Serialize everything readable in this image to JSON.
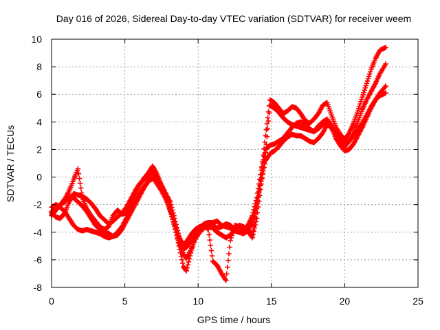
{
  "chart_data": {
    "type": "scatter",
    "title": "Day 016 of 2026, Sidereal Day-to-day VTEC variation (SDTVAR) for receiver weem",
    "xlabel": "GPS time / hours",
    "ylabel": "SDTVAR / TECUs",
    "xlim": [
      0,
      25
    ],
    "ylim": [
      -8,
      10
    ],
    "x_ticks": [
      "0",
      "5",
      "10",
      "15",
      "20",
      "25"
    ],
    "y_ticks": [
      "-8",
      "-6",
      "-4",
      "-2",
      "0",
      "2",
      "4",
      "6",
      "8",
      "10"
    ],
    "grid": true,
    "marker": "+",
    "colors": {
      "series": "#ff0000",
      "grid": "#a0a0a0",
      "axis": "#000000"
    },
    "series": [
      {
        "x": [
          0.0,
          0.3,
          0.6,
          0.9,
          1.2,
          1.5,
          1.8,
          2.1,
          2.4,
          2.7,
          3.0,
          3.3,
          3.6,
          3.9,
          4.2,
          4.5,
          4.8,
          5.1,
          5.4,
          5.7,
          6.0,
          6.3,
          6.6,
          6.9,
          7.2,
          7.5,
          7.8,
          8.1,
          8.4,
          8.7,
          9.0,
          9.2,
          9.5,
          9.8,
          10.1,
          10.4,
          10.7,
          11.0,
          11.3,
          11.6,
          11.9,
          12.2,
          12.5,
          12.8,
          13.1,
          13.4,
          13.7,
          14.0,
          14.3,
          14.6,
          14.9,
          15.2,
          15.5,
          15.8,
          16.1,
          16.4,
          16.7,
          17.0,
          17.3,
          17.6,
          17.9,
          18.2,
          18.5,
          18.8,
          19.1,
          19.4,
          19.7,
          20.0,
          20.3,
          20.6,
          20.9,
          21.2,
          21.5,
          21.8,
          22.1,
          22.4,
          22.8
        ],
        "values": [
          -2.6,
          -2.9,
          -3.0,
          -2.6,
          -1.8,
          -1.2,
          -1.3,
          -1.4,
          -1.6,
          -1.9,
          -2.3,
          -2.8,
          -3.1,
          -3.4,
          -3.2,
          -2.9,
          -2.6,
          -2.2,
          -1.6,
          -1.0,
          -0.5,
          -0.2,
          0.1,
          0.4,
          0.0,
          -0.6,
          -1.2,
          -1.8,
          -3.0,
          -4.3,
          -5.2,
          -5.1,
          -4.7,
          -4.2,
          -3.7,
          -3.4,
          -3.3,
          -3.3,
          -3.2,
          -3.5,
          -3.6,
          -3.7,
          -3.9,
          -4.0,
          -3.8,
          -3.5,
          -2.8,
          -1.5,
          0.5,
          2.0,
          2.3,
          2.4,
          2.6,
          2.8,
          3.2,
          3.6,
          3.9,
          4.0,
          3.8,
          3.5,
          3.3,
          3.5,
          3.8,
          4.1,
          3.6,
          3.0,
          2.5,
          2.2,
          2.6,
          3.0,
          3.4,
          3.9,
          4.5,
          5.1,
          5.6,
          5.9,
          6.1
        ]
      },
      {
        "x": [
          0.0,
          0.3,
          0.6,
          0.9,
          1.2,
          1.5,
          1.8,
          2.1,
          2.4,
          2.7,
          3.0,
          3.3,
          3.6,
          3.9,
          4.2,
          4.5,
          4.8,
          5.1,
          5.4,
          5.7,
          6.0,
          6.3,
          6.6,
          6.9,
          7.2,
          7.5,
          7.8,
          8.1,
          8.4,
          8.7,
          9.0,
          9.2,
          9.5,
          9.8,
          10.1,
          10.4,
          10.7,
          11.0,
          11.3,
          11.6,
          11.9,
          12.2,
          12.5,
          12.8,
          13.1,
          13.4,
          13.7,
          14.0,
          14.3,
          14.6,
          14.9,
          15.2,
          15.5,
          15.8,
          16.1,
          16.4,
          16.7,
          17.0,
          17.3,
          17.6,
          17.9,
          18.2,
          18.5,
          18.8,
          19.1,
          19.4,
          19.7,
          20.0,
          20.3,
          20.6,
          20.9,
          21.2,
          21.5,
          21.8,
          22.1,
          22.4,
          22.8
        ],
        "values": [
          -2.2,
          -2.0,
          -2.2,
          -2.5,
          -3.0,
          -3.5,
          -3.8,
          -3.9,
          -3.8,
          -3.9,
          -4.0,
          -4.1,
          -4.3,
          -4.4,
          -4.3,
          -4.0,
          -3.6,
          -3.0,
          -2.4,
          -1.8,
          -1.2,
          -0.7,
          -0.3,
          -0.1,
          -0.4,
          -0.9,
          -1.4,
          -2.2,
          -3.5,
          -5.0,
          -6.5,
          -6.8,
          -5.5,
          -4.3,
          -3.7,
          -3.4,
          -3.3,
          -3.5,
          -3.7,
          -3.6,
          -3.4,
          -3.5,
          -3.8,
          -4.0,
          -4.1,
          -3.9,
          -3.3,
          -2.0,
          -0.3,
          1.2,
          1.7,
          1.9,
          2.2,
          2.6,
          2.9,
          3.1,
          3.0,
          3.0,
          2.8,
          2.6,
          2.5,
          2.8,
          3.2,
          3.8,
          3.6,
          2.8,
          2.3,
          1.9,
          2.0,
          2.4,
          3.0,
          3.6,
          4.3,
          5.0,
          5.6,
          6.1,
          6.6
        ]
      },
      {
        "x": [
          0.0,
          0.3,
          0.6,
          0.9,
          1.2,
          1.5,
          1.8,
          2.1,
          2.4,
          2.7,
          3.0,
          3.3,
          3.6,
          3.9,
          4.2,
          4.5,
          4.8,
          5.1,
          5.4,
          5.7,
          6.0,
          6.3,
          6.6,
          6.9,
          7.2,
          7.5,
          7.8,
          8.1,
          8.4,
          8.7,
          9.0,
          9.2,
          9.5,
          9.8,
          10.1,
          10.4,
          10.7,
          11.0,
          11.3,
          11.6,
          11.9,
          12.2,
          12.5,
          12.8,
          13.1,
          13.4,
          13.7,
          14.0,
          14.3,
          14.6,
          14.9,
          15.2,
          15.5,
          15.8,
          16.1,
          16.4,
          16.7,
          17.0,
          17.3,
          17.6,
          17.9,
          18.2,
          18.5,
          18.8,
          19.1,
          19.4,
          19.7,
          20.0,
          20.3,
          20.6,
          20.9,
          21.2,
          21.5,
          21.8,
          22.1,
          22.4,
          22.8
        ],
        "values": [
          -2.5,
          -2.3,
          -2.0,
          -1.6,
          -1.0,
          -0.2,
          0.6,
          -1.5,
          -2.3,
          -2.8,
          -3.2,
          -3.6,
          -3.8,
          -3.6,
          -2.8,
          -2.4,
          -2.7,
          -2.6,
          -2.1,
          -1.4,
          -0.6,
          -0.1,
          0.3,
          0.8,
          0.2,
          -0.6,
          -1.5,
          -2.5,
          -3.6,
          -4.8,
          -5.6,
          -5.9,
          -5.3,
          -4.5,
          -4.0,
          -3.7,
          -3.5,
          -3.7,
          -4.0,
          -4.2,
          -4.4,
          -4.2,
          -3.8,
          -3.5,
          -3.6,
          -3.9,
          -4.4,
          -3.0,
          -0.5,
          1.8,
          5.2,
          5.0,
          4.7,
          4.3,
          4.0,
          3.8,
          3.7,
          3.6,
          3.5,
          3.4,
          3.3,
          3.7,
          4.0,
          4.2,
          3.7,
          3.2,
          2.8,
          2.4,
          2.6,
          3.2,
          4.0,
          4.9,
          5.6,
          6.2,
          6.8,
          7.5,
          8.2
        ]
      },
      {
        "x": [
          0.0,
          0.3,
          0.6,
          0.9,
          1.2,
          1.5,
          1.8,
          2.1,
          2.4,
          2.7,
          3.0,
          3.3,
          3.6,
          3.9,
          4.2,
          4.5,
          4.8,
          5.1,
          5.4,
          5.7,
          6.0,
          6.3,
          6.6,
          6.9,
          7.2,
          7.5,
          7.8,
          8.1,
          8.4,
          8.7,
          9.0,
          9.2,
          9.5,
          9.8,
          10.1,
          10.4,
          10.7,
          11.0,
          11.3,
          11.6,
          11.9,
          12.2,
          12.5,
          12.8,
          13.1,
          13.4,
          13.7,
          14.0,
          14.3,
          14.6,
          14.9,
          15.2,
          15.5,
          15.8,
          16.1,
          16.4,
          16.7,
          17.0,
          17.3,
          17.6,
          17.9,
          18.2,
          18.5,
          18.8,
          19.1,
          19.4,
          19.7,
          20.0,
          20.3,
          20.6,
          20.9,
          21.2,
          21.5,
          21.8,
          22.1,
          22.4,
          22.8
        ],
        "values": [
          -2.8,
          -2.4,
          -2.0,
          -1.8,
          -1.4,
          -1.5,
          -1.8,
          -2.1,
          -2.5,
          -3.0,
          -3.5,
          -3.8,
          -4.0,
          -4.1,
          -4.3,
          -4.2,
          -3.8,
          -3.2,
          -2.6,
          -2.0,
          -1.4,
          -0.8,
          -0.3,
          0.0,
          -0.5,
          -1.0,
          -1.6,
          -2.4,
          -3.4,
          -4.4,
          -4.9,
          -4.7,
          -4.2,
          -3.8,
          -3.6,
          -3.5,
          -3.8,
          -6.1,
          -6.4,
          -7.0,
          -7.5,
          -4.6,
          -3.5,
          -3.6,
          -3.7,
          -3.9,
          -4.2,
          -2.3,
          0.2,
          3.0,
          5.6,
          5.4,
          5.0,
          4.6,
          4.8,
          5.1,
          5.0,
          4.6,
          4.1,
          3.9,
          4.2,
          4.6,
          5.2,
          5.4,
          4.5,
          3.6,
          3.1,
          2.7,
          3.2,
          3.9,
          4.8,
          5.8,
          6.8,
          7.8,
          8.6,
          9.2,
          9.4
        ]
      }
    ]
  }
}
